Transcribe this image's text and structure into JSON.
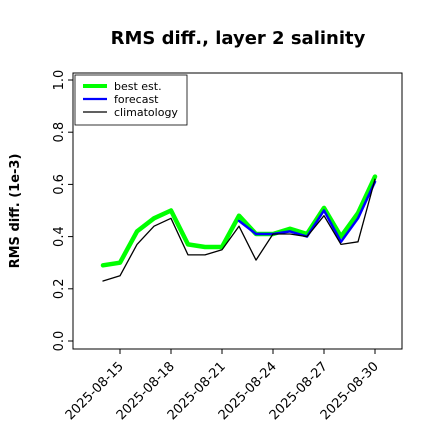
{
  "chart_data": {
    "type": "line",
    "title": "RMS diff., layer 2 salinity",
    "xlabel": "",
    "ylabel": "RMS diff. (1e-3)",
    "ylim": [
      0.0,
      1.0
    ],
    "yticks": [
      "0.0",
      "0.2",
      "0.4",
      "0.6",
      "0.8",
      "1.0"
    ],
    "x": [
      "2025-08-14",
      "2025-08-15",
      "2025-08-16",
      "2025-08-17",
      "2025-08-18",
      "2025-08-19",
      "2025-08-20",
      "2025-08-21",
      "2025-08-22",
      "2025-08-23",
      "2025-08-24",
      "2025-08-25",
      "2025-08-26",
      "2025-08-27",
      "2025-08-28",
      "2025-08-29",
      "2025-08-30"
    ],
    "xticks": [
      "2025-08-15",
      "2025-08-18",
      "2025-08-21",
      "2025-08-24",
      "2025-08-27",
      "2025-08-30"
    ],
    "highlight_tick": "2025-08-21",
    "highlight_color": "#2e8b2e",
    "grid": false,
    "legend_position": "top-left",
    "series": [
      {
        "name": "best est.",
        "color": "#00ff00",
        "values": [
          0.29,
          0.3,
          0.42,
          0.47,
          0.5,
          0.37,
          0.36,
          0.36,
          0.48,
          0.41,
          0.41,
          0.43,
          0.41,
          0.51,
          0.4,
          0.49,
          0.63
        ]
      },
      {
        "name": "forecast",
        "color": "#0000ff",
        "values": [
          null,
          null,
          null,
          null,
          null,
          null,
          null,
          null,
          0.46,
          0.41,
          0.41,
          0.42,
          0.4,
          0.5,
          0.38,
          0.47,
          0.61
        ]
      },
      {
        "name": "climatology",
        "color": "#000000",
        "values": [
          0.23,
          0.25,
          0.37,
          0.44,
          0.47,
          0.33,
          0.33,
          0.35,
          0.44,
          0.31,
          0.41,
          0.41,
          0.4,
          0.48,
          0.37,
          0.38,
          0.62
        ]
      }
    ]
  }
}
